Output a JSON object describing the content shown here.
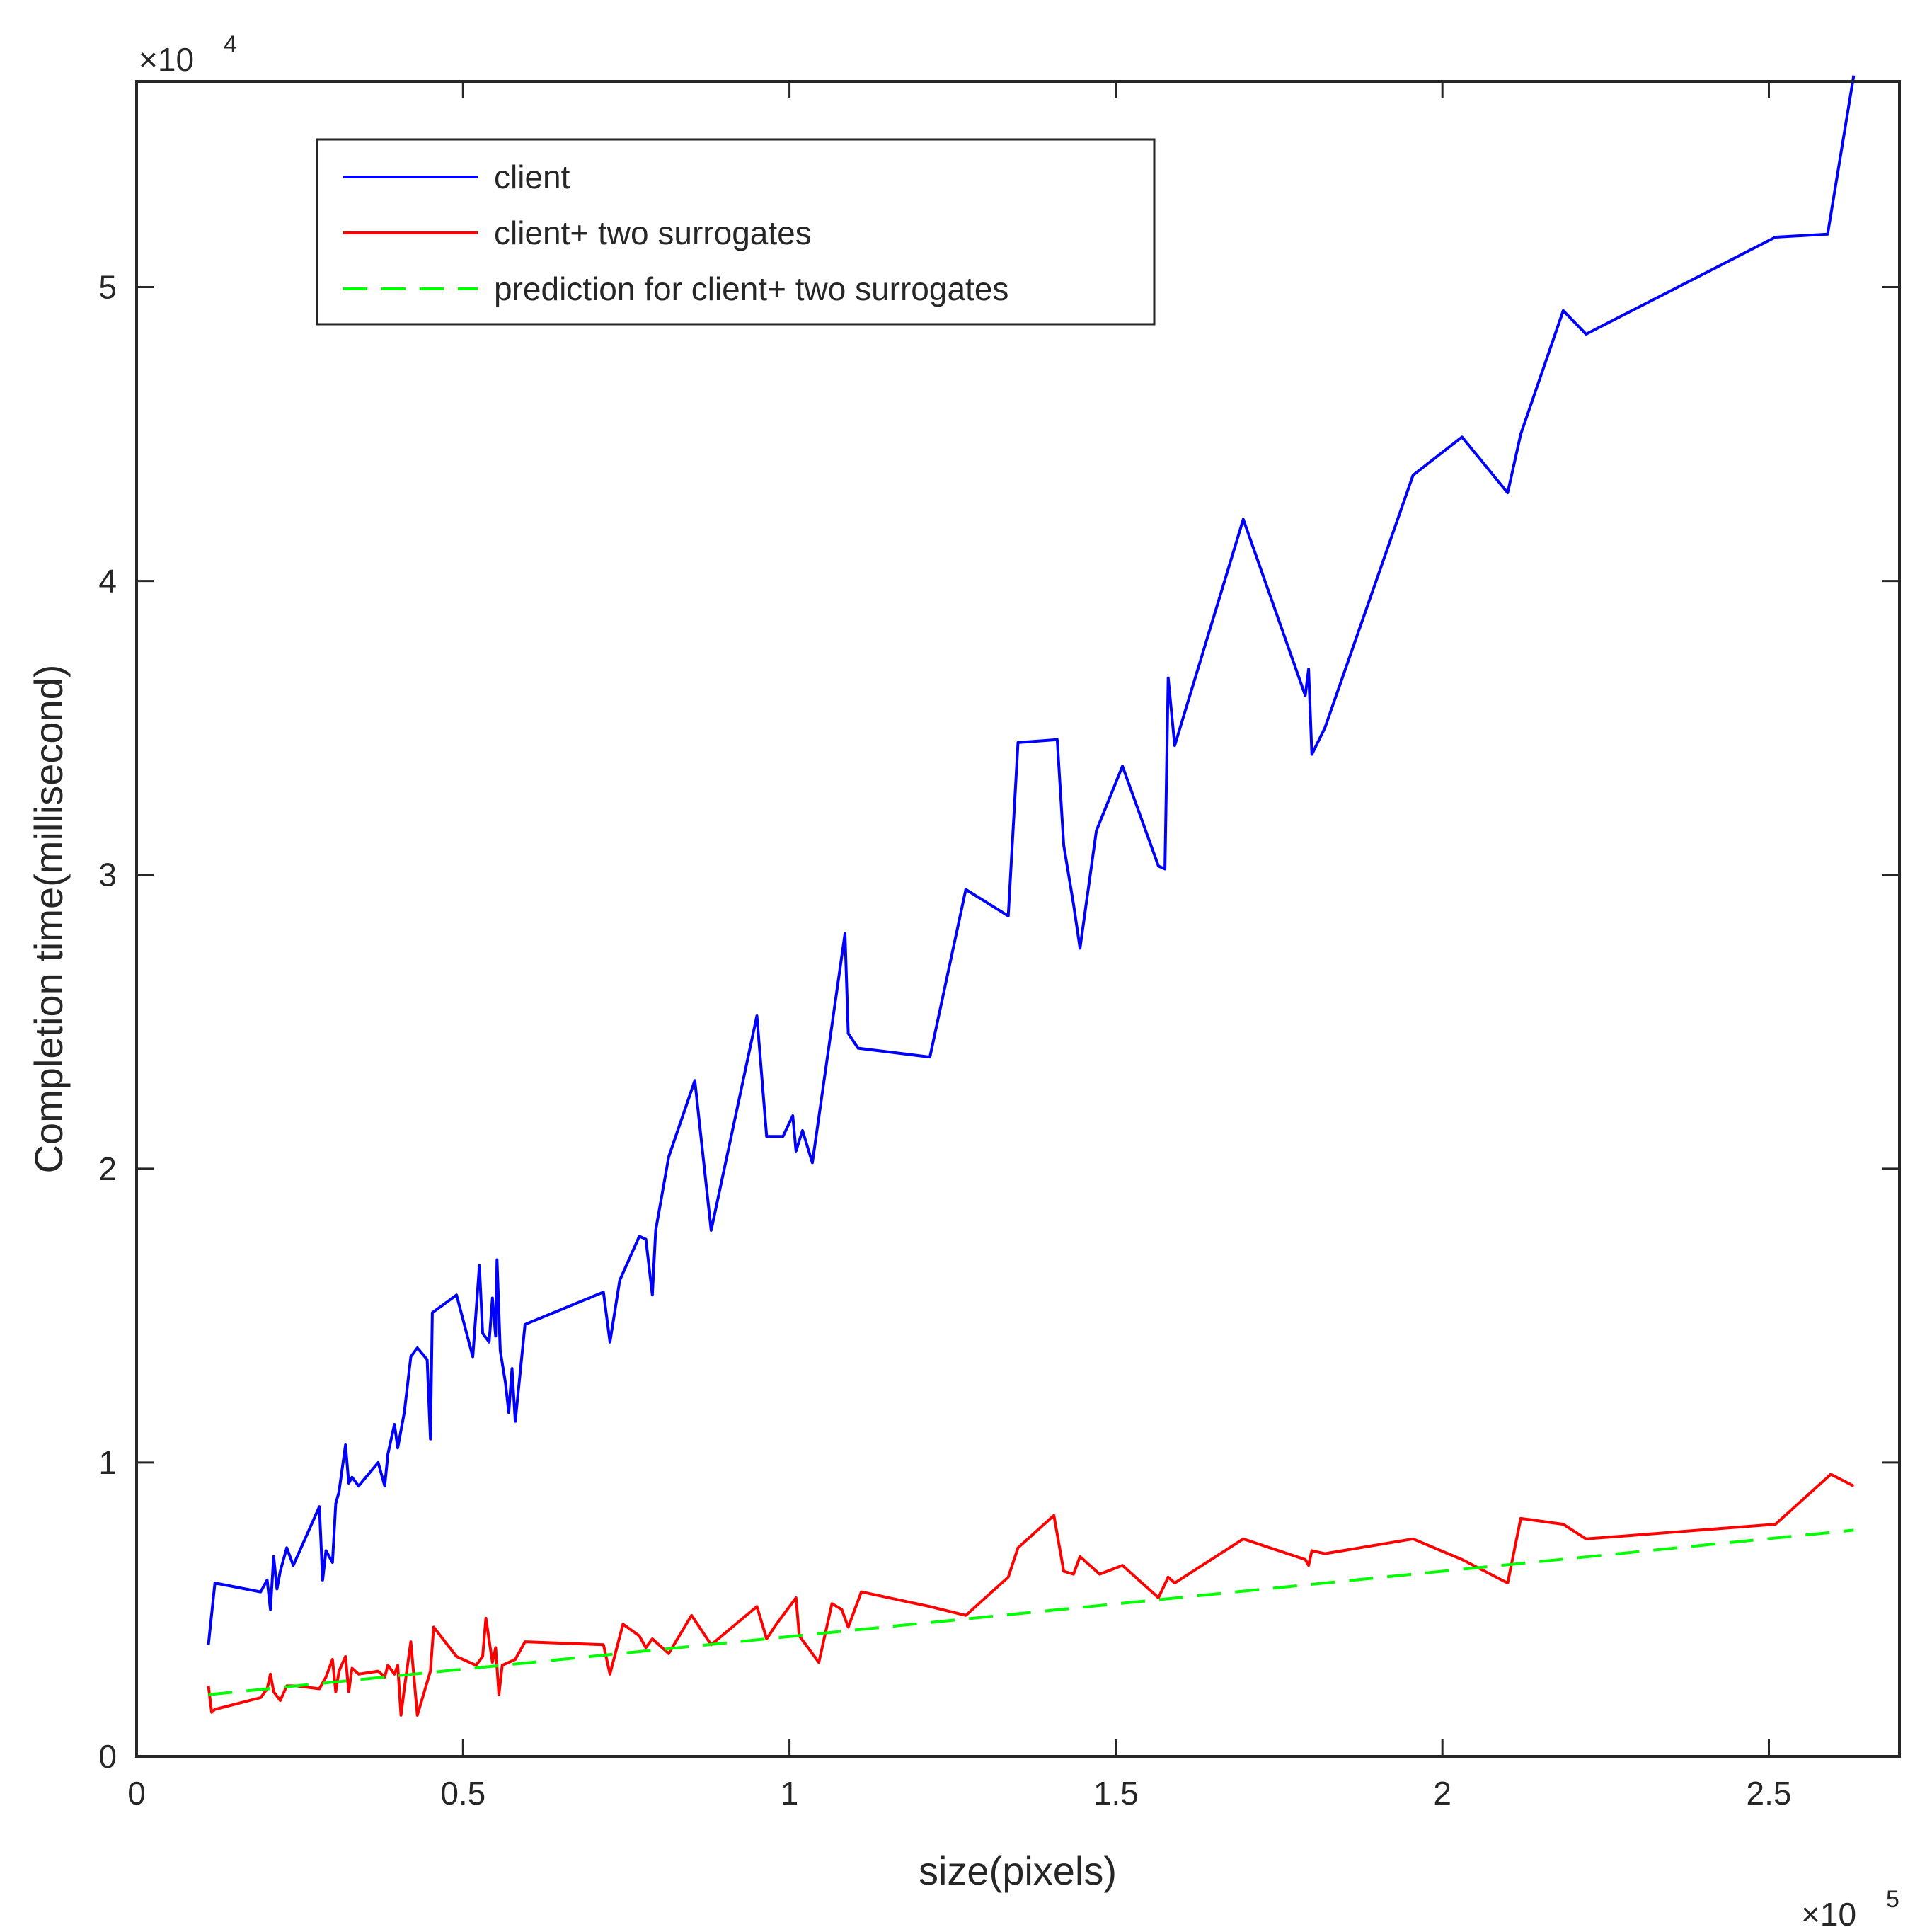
{
  "chart_data": {
    "type": "line",
    "title": "",
    "xlabel": "size(pixels)",
    "ylabel": "Completion time(millisecond)",
    "x_exponent_label": "×10",
    "x_exponent": "5",
    "y_exponent_label": "×10",
    "y_exponent": "4",
    "xlim": [
      0,
      270000
    ],
    "ylim": [
      0,
      57000
    ],
    "xticks": [
      0,
      50000,
      100000,
      150000,
      200000,
      250000
    ],
    "xtick_labels": [
      "0",
      "0.5",
      "1",
      "1.5",
      "2",
      "2.5"
    ],
    "yticks": [
      0,
      10000,
      20000,
      30000,
      40000,
      50000
    ],
    "ytick_labels": [
      "0",
      "1",
      "2",
      "3",
      "4",
      "5"
    ],
    "grid": false,
    "legend_position": "top-left",
    "series": [
      {
        "name": "client",
        "color": "#0000ff",
        "style": "solid",
        "points": [
          [
            11000,
            3800
          ],
          [
            12000,
            5900
          ],
          [
            19000,
            5600
          ],
          [
            20000,
            6000
          ],
          [
            20500,
            5000
          ],
          [
            21000,
            6800
          ],
          [
            21500,
            5700
          ],
          [
            22000,
            6300
          ],
          [
            23000,
            7100
          ],
          [
            24000,
            6500
          ],
          [
            28000,
            8500
          ],
          [
            28500,
            6000
          ],
          [
            29000,
            7000
          ],
          [
            30000,
            6600
          ],
          [
            30500,
            8600
          ],
          [
            31000,
            9000
          ],
          [
            32000,
            10600
          ],
          [
            32500,
            9300
          ],
          [
            33000,
            9500
          ],
          [
            34000,
            9200
          ],
          [
            37000,
            10000
          ],
          [
            38000,
            9200
          ],
          [
            38500,
            10300
          ],
          [
            39500,
            11300
          ],
          [
            40000,
            10500
          ],
          [
            41000,
            11700
          ],
          [
            42000,
            13600
          ],
          [
            43000,
            13900
          ],
          [
            44500,
            13500
          ],
          [
            45000,
            10800
          ],
          [
            45300,
            15100
          ],
          [
            49000,
            15700
          ],
          [
            51500,
            13600
          ],
          [
            52500,
            16700
          ],
          [
            53000,
            14400
          ],
          [
            54000,
            14100
          ],
          [
            54500,
            15600
          ],
          [
            55000,
            14300
          ],
          [
            55200,
            16900
          ],
          [
            55700,
            13800
          ],
          [
            56500,
            12700
          ],
          [
            57000,
            11700
          ],
          [
            57500,
            13200
          ],
          [
            58000,
            11400
          ],
          [
            59500,
            14700
          ],
          [
            71500,
            15800
          ],
          [
            72500,
            14100
          ],
          [
            74000,
            16200
          ],
          [
            77000,
            17700
          ],
          [
            78000,
            17600
          ],
          [
            79000,
            15700
          ],
          [
            79500,
            17900
          ],
          [
            81500,
            20400
          ],
          [
            85500,
            23000
          ],
          [
            88000,
            17900
          ],
          [
            95000,
            25200
          ],
          [
            96500,
            21100
          ],
          [
            99000,
            21100
          ],
          [
            100500,
            21800
          ],
          [
            101000,
            20600
          ],
          [
            102000,
            21300
          ],
          [
            103500,
            20200
          ],
          [
            108500,
            28000
          ],
          [
            109000,
            24600
          ],
          [
            110500,
            24100
          ],
          [
            121500,
            23800
          ],
          [
            127000,
            29500
          ],
          [
            133500,
            28600
          ],
          [
            135000,
            34500
          ],
          [
            141000,
            34600
          ],
          [
            142000,
            31000
          ],
          [
            143500,
            29000
          ],
          [
            144500,
            27500
          ],
          [
            147000,
            31500
          ],
          [
            151000,
            33700
          ],
          [
            156500,
            30300
          ],
          [
            157500,
            30200
          ],
          [
            158000,
            36700
          ],
          [
            159000,
            34400
          ],
          [
            169500,
            42100
          ],
          [
            179000,
            36100
          ],
          [
            179500,
            37000
          ],
          [
            180000,
            34100
          ],
          [
            182000,
            35000
          ],
          [
            195500,
            43600
          ],
          [
            203000,
            44900
          ],
          [
            210000,
            43000
          ],
          [
            212000,
            45000
          ],
          [
            218500,
            49200
          ],
          [
            222000,
            48400
          ],
          [
            251000,
            51700
          ],
          [
            259000,
            51800
          ],
          [
            263000,
            57200
          ]
        ]
      },
      {
        "name": "client+ two surrogates",
        "color": "#ff0000",
        "style": "solid",
        "points": [
          [
            11000,
            2400
          ],
          [
            11500,
            1500
          ],
          [
            12000,
            1600
          ],
          [
            19000,
            2000
          ],
          [
            20000,
            2300
          ],
          [
            20500,
            2800
          ],
          [
            21000,
            2200
          ],
          [
            22000,
            1900
          ],
          [
            23000,
            2400
          ],
          [
            24500,
            2400
          ],
          [
            28000,
            2300
          ],
          [
            29000,
            2700
          ],
          [
            30000,
            3300
          ],
          [
            30500,
            2200
          ],
          [
            31000,
            2900
          ],
          [
            32000,
            3400
          ],
          [
            32500,
            2200
          ],
          [
            33000,
            3000
          ],
          [
            34000,
            2800
          ],
          [
            37000,
            2900
          ],
          [
            38000,
            2700
          ],
          [
            38500,
            3100
          ],
          [
            39500,
            2800
          ],
          [
            40000,
            3100
          ],
          [
            40500,
            1400
          ],
          [
            41000,
            2300
          ],
          [
            42000,
            3900
          ],
          [
            43000,
            1400
          ],
          [
            45000,
            2900
          ],
          [
            45500,
            4400
          ],
          [
            49000,
            3400
          ],
          [
            52000,
            3100
          ],
          [
            53000,
            3400
          ],
          [
            53500,
            4700
          ],
          [
            54500,
            3200
          ],
          [
            55000,
            3700
          ],
          [
            55500,
            2100
          ],
          [
            56000,
            3100
          ],
          [
            58000,
            3300
          ],
          [
            59500,
            3900
          ],
          [
            71500,
            3800
          ],
          [
            72500,
            2800
          ],
          [
            74500,
            4500
          ],
          [
            77000,
            4100
          ],
          [
            78000,
            3700
          ],
          [
            79000,
            4000
          ],
          [
            81500,
            3500
          ],
          [
            85000,
            4800
          ],
          [
            88000,
            3800
          ],
          [
            95000,
            5100
          ],
          [
            96500,
            4000
          ],
          [
            98000,
            4500
          ],
          [
            101000,
            5400
          ],
          [
            101500,
            4100
          ],
          [
            104500,
            3200
          ],
          [
            106500,
            5200
          ],
          [
            108000,
            5000
          ],
          [
            109000,
            4400
          ],
          [
            111000,
            5600
          ],
          [
            121500,
            5100
          ],
          [
            127000,
            4800
          ],
          [
            133500,
            6100
          ],
          [
            135000,
            7100
          ],
          [
            140500,
            8200
          ],
          [
            142000,
            6300
          ],
          [
            143500,
            6200
          ],
          [
            144500,
            6800
          ],
          [
            147500,
            6200
          ],
          [
            151000,
            6500
          ],
          [
            156500,
            5400
          ],
          [
            158000,
            6100
          ],
          [
            159000,
            5900
          ],
          [
            169500,
            7400
          ],
          [
            179000,
            6700
          ],
          [
            179500,
            6500
          ],
          [
            180000,
            7000
          ],
          [
            182000,
            6900
          ],
          [
            195500,
            7400
          ],
          [
            203000,
            6700
          ],
          [
            210000,
            5900
          ],
          [
            212000,
            8100
          ],
          [
            218500,
            7900
          ],
          [
            222000,
            7400
          ],
          [
            251000,
            7900
          ],
          [
            259500,
            9600
          ],
          [
            263000,
            9200
          ]
        ]
      },
      {
        "name": "prediction for client+ two surrogates",
        "color": "#00ff00",
        "style": "dashed",
        "points": [
          [
            11000,
            2100
          ],
          [
            263000,
            7700
          ]
        ]
      }
    ]
  }
}
